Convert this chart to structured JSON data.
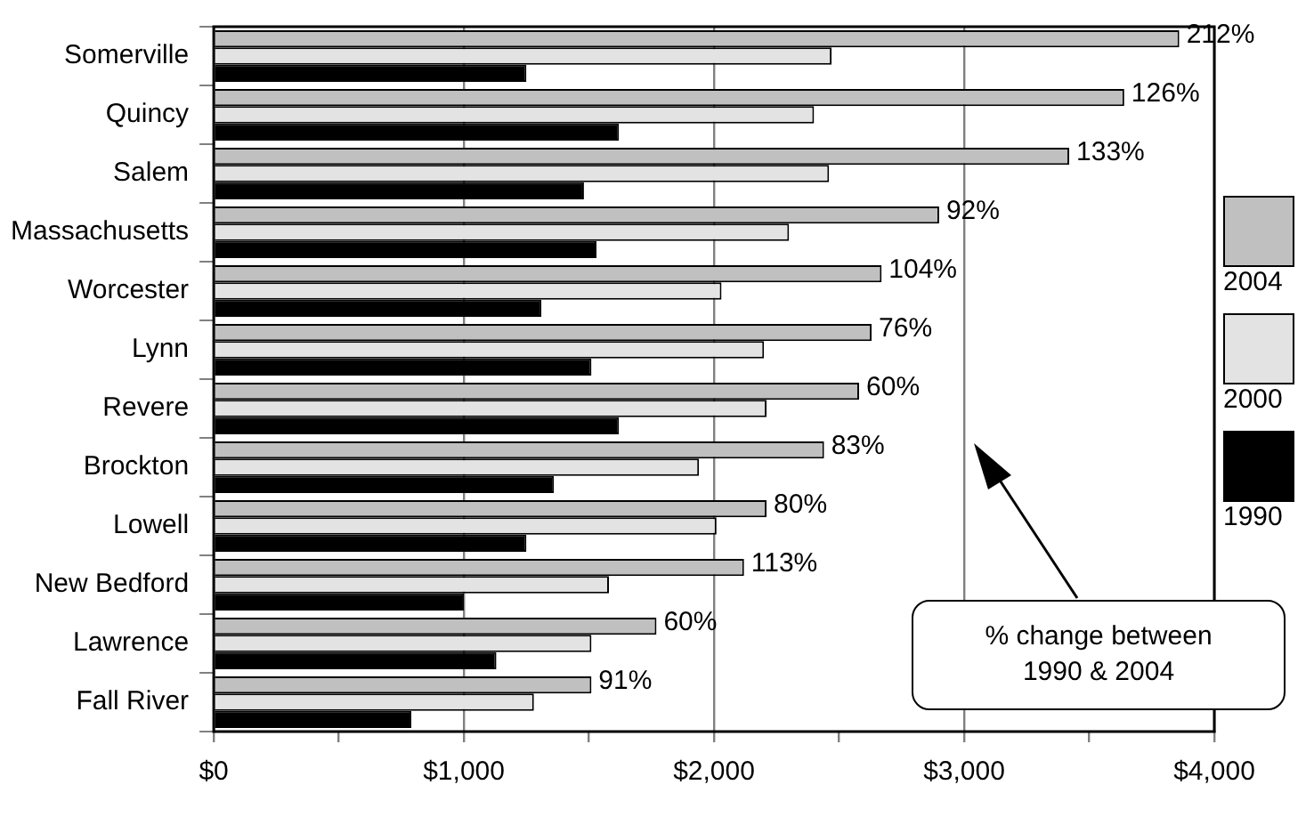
{
  "chart_data": {
    "type": "bar",
    "orientation": "horizontal",
    "categories": [
      "Somerville",
      "Quincy",
      "Salem",
      "Massachusetts",
      "Worcester",
      "Lynn",
      "Revere",
      "Brockton",
      "Lowell",
      "New Bedford",
      "Lawrence",
      "Fall River"
    ],
    "series": [
      {
        "name": "2004",
        "color": "#c0c0c0",
        "values": [
          3860,
          3640,
          3420,
          2900,
          2670,
          2630,
          2580,
          2440,
          2210,
          2120,
          1770,
          1510
        ]
      },
      {
        "name": "2000",
        "color": "#e3e3e3",
        "values": [
          2470,
          2400,
          2460,
          2300,
          2030,
          2200,
          2210,
          1940,
          2010,
          1580,
          1510,
          1280
        ]
      },
      {
        "name": "1990",
        "color": "#000000",
        "values": [
          1250,
          1620,
          1480,
          1530,
          1310,
          1510,
          1620,
          1360,
          1250,
          1000,
          1130,
          790
        ]
      }
    ],
    "xlim": [
      0,
      4000
    ],
    "xticks": [
      {
        "value": 0,
        "label": "$0"
      },
      {
        "value": 500,
        "label": null
      },
      {
        "value": 1000,
        "label": "$1,000"
      },
      {
        "value": 1500,
        "label": null
      },
      {
        "value": 2000,
        "label": "$2,000"
      },
      {
        "value": 2500,
        "label": null
      },
      {
        "value": 3000,
        "label": "$3,000"
      },
      {
        "value": 3500,
        "label": null
      },
      {
        "value": 4000,
        "label": "$4,000"
      }
    ],
    "grid": "x",
    "legend": "right",
    "annotations": [
      "212%",
      "126%",
      "133%",
      "92%",
      "104%",
      "76%",
      "60%",
      "83%",
      "80%",
      "113%",
      "60%",
      "91%",
      "% change between 1990 & 2004"
    ]
  }
}
